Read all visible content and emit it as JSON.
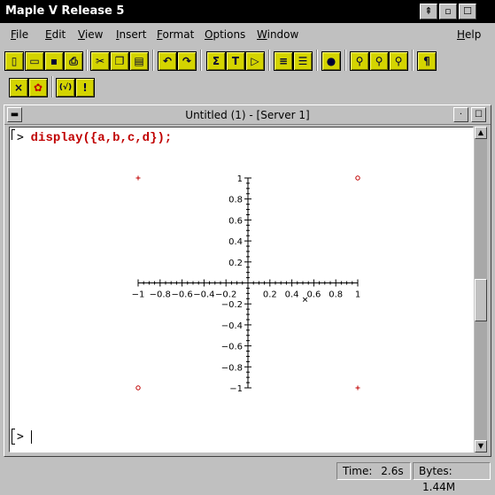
{
  "app": {
    "title": "Maple V Release 5",
    "titlebar_buttons": [
      "⇞",
      "▫",
      "☐"
    ]
  },
  "menubar": {
    "items": [
      {
        "label": "File",
        "u": "F",
        "rest": "ile"
      },
      {
        "label": "Edit",
        "u": "E",
        "rest": "dit"
      },
      {
        "label": "View",
        "u": "V",
        "rest": "iew"
      },
      {
        "label": "Insert",
        "u": "I",
        "rest": "nsert"
      },
      {
        "label": "Format",
        "u": "F",
        "rest": "ormat"
      },
      {
        "label": "Options",
        "u": "O",
        "rest": "ptions"
      },
      {
        "label": "Window",
        "u": "W",
        "rest": "indow"
      },
      {
        "label": "Help",
        "u": "H",
        "rest": "elp"
      }
    ]
  },
  "toolbar1": {
    "tools": [
      {
        "name": "new-icon",
        "glyph": "▯"
      },
      {
        "name": "open-icon",
        "glyph": "▭"
      },
      {
        "name": "save-icon",
        "glyph": "▪"
      },
      {
        "name": "print-icon",
        "glyph": "⎙"
      },
      {
        "name": "cut-icon",
        "glyph": "✂"
      },
      {
        "name": "copy-icon",
        "glyph": "❐"
      },
      {
        "name": "paste-icon",
        "glyph": "▤"
      },
      {
        "name": "undo-icon",
        "glyph": "↶"
      },
      {
        "name": "redo-icon",
        "glyph": "↷"
      },
      {
        "name": "sigma-icon",
        "glyph": "Σ"
      },
      {
        "name": "text-icon",
        "glyph": "T"
      },
      {
        "name": "execute-icon",
        "glyph": "▷"
      },
      {
        "name": "collapse-section-icon",
        "glyph": "≡"
      },
      {
        "name": "expand-section-icon",
        "glyph": "☰"
      },
      {
        "name": "stop-icon",
        "glyph": "●"
      },
      {
        "name": "zoom-small-icon",
        "glyph": "⚲"
      },
      {
        "name": "zoom-medium-icon",
        "glyph": "⚲"
      },
      {
        "name": "zoom-large-icon",
        "glyph": "⚲"
      },
      {
        "name": "pilcrow-icon",
        "glyph": "¶"
      }
    ]
  },
  "toolbar2": {
    "tools": [
      {
        "name": "close-x-icon",
        "glyph": "×"
      },
      {
        "name": "maple-leaf-icon",
        "glyph": "✿"
      },
      {
        "name": "bracket-expression-icon",
        "glyph": "(√)"
      },
      {
        "name": "exclamation-icon",
        "glyph": "!"
      }
    ]
  },
  "document": {
    "title": "Untitled (1) - [Server 1]",
    "command_prompt": ">",
    "command": "display({a,b,c,d});",
    "empty_prompt": ">"
  },
  "chart_data": {
    "type": "scatter",
    "title": "",
    "xlabel": "",
    "ylabel": "",
    "xlim": [
      -1,
      1
    ],
    "ylim": [
      -1,
      1
    ],
    "x_tick_labels": [
      "−1",
      "−0.8",
      "−0.6",
      "−0.4",
      "−0.2",
      "0.2",
      "0.4",
      "0.6",
      "0.8",
      "1"
    ],
    "x_tick_values": [
      -1,
      -0.8,
      -0.6,
      -0.4,
      -0.2,
      0.2,
      0.4,
      0.6,
      0.8,
      1
    ],
    "y_tick_labels": [
      "1",
      "0.8",
      "0.6",
      "0.4",
      "0.2",
      "−0.2",
      "−0.4",
      "−0.6",
      "−0.8",
      "−1"
    ],
    "y_tick_values": [
      1,
      0.8,
      0.6,
      0.4,
      0.2,
      -0.2,
      -0.4,
      -0.6,
      -0.8,
      -1
    ],
    "points": [
      {
        "x": -1,
        "y": 1,
        "symbol": "cross"
      },
      {
        "x": 1,
        "y": 1,
        "symbol": "circle"
      },
      {
        "x": -1,
        "y": -1,
        "symbol": "circle"
      },
      {
        "x": 1,
        "y": -1,
        "symbol": "cross"
      }
    ],
    "point_color": "#c00000"
  },
  "status": {
    "time_label": "Time:",
    "time_value": "2.6s",
    "bytes_label": "Bytes:",
    "bytes_value": "1.44M"
  },
  "colors": {
    "toolbar_button": "#d4d400",
    "command_text": "#c00000",
    "window_bg": "#c0c0c0"
  }
}
